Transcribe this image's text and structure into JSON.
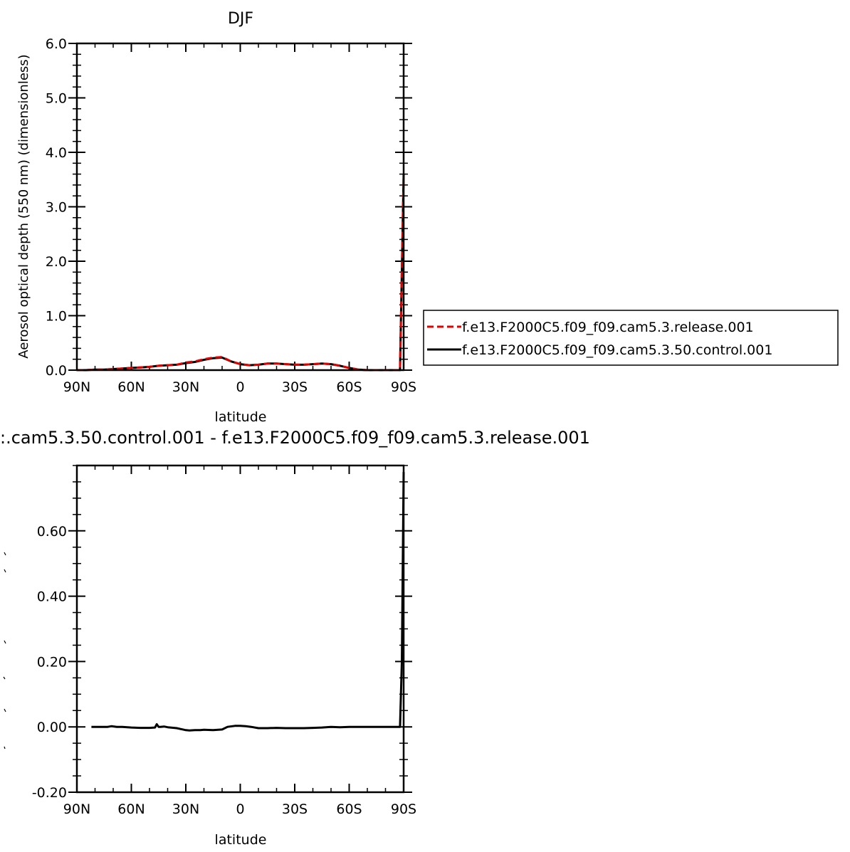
{
  "chart_data": [
    {
      "type": "line",
      "title": "DJF",
      "xlabel": "latitude",
      "ylabel": "Aerosol optical depth (550 nm) (dimensionless)",
      "xlim": [
        90,
        -90
      ],
      "ylim": [
        0.0,
        6.0
      ],
      "x_ticks": [
        {
          "value": 90,
          "label": "90N"
        },
        {
          "value": 60,
          "label": "60N"
        },
        {
          "value": 30,
          "label": "30N"
        },
        {
          "value": 0,
          "label": "0"
        },
        {
          "value": -30,
          "label": "30S"
        },
        {
          "value": -60,
          "label": "60S"
        },
        {
          "value": -90,
          "label": "90S"
        }
      ],
      "y_ticks": [
        {
          "value": 0.0,
          "label": "0.0"
        },
        {
          "value": 1.0,
          "label": "1.0"
        },
        {
          "value": 2.0,
          "label": "2.0"
        },
        {
          "value": 3.0,
          "label": "3.0"
        },
        {
          "value": 4.0,
          "label": "4.0"
        },
        {
          "value": 5.0,
          "label": "5.0"
        },
        {
          "value": 6.0,
          "label": "6.0"
        }
      ],
      "legend_position": "right",
      "series": [
        {
          "name": "f.e13.F2000C5.f09_f09.cam5.3.release.001",
          "color": "#e00000",
          "dash": "dashed",
          "x": [
            90,
            85,
            80,
            75,
            70,
            65,
            60,
            55,
            50,
            45,
            40,
            35,
            30,
            25,
            20,
            15,
            10,
            5,
            0,
            -5,
            -10,
            -15,
            -20,
            -25,
            -30,
            -35,
            -40,
            -45,
            -50,
            -55,
            -60,
            -65,
            -70,
            -75,
            -80,
            -85,
            -88,
            -90
          ],
          "y": [
            0.0,
            0.0,
            0.01,
            0.01,
            0.02,
            0.03,
            0.04,
            0.05,
            0.06,
            0.08,
            0.09,
            0.1,
            0.14,
            0.16,
            0.2,
            0.23,
            0.24,
            0.16,
            0.11,
            0.09,
            0.1,
            0.12,
            0.12,
            0.11,
            0.1,
            0.1,
            0.11,
            0.12,
            0.11,
            0.08,
            0.04,
            0.01,
            0.0,
            0.0,
            0.0,
            0.0,
            0.0,
            3.55
          ]
        },
        {
          "name": "f.e13.F2000C5.f09_f09.cam5.3.50.control.001",
          "color": "#000000",
          "dash": "solid",
          "x": [
            90,
            85,
            80,
            75,
            70,
            65,
            60,
            55,
            50,
            45,
            40,
            35,
            30,
            25,
            20,
            15,
            10,
            5,
            0,
            -5,
            -10,
            -15,
            -20,
            -25,
            -30,
            -35,
            -40,
            -45,
            -50,
            -55,
            -60,
            -65,
            -70,
            -75,
            -80,
            -85,
            -88,
            -90
          ],
          "y": [
            0.0,
            0.0,
            0.01,
            0.01,
            0.02,
            0.03,
            0.04,
            0.05,
            0.06,
            0.08,
            0.09,
            0.1,
            0.13,
            0.15,
            0.19,
            0.22,
            0.23,
            0.16,
            0.11,
            0.09,
            0.1,
            0.12,
            0.12,
            0.11,
            0.1,
            0.1,
            0.11,
            0.12,
            0.11,
            0.08,
            0.04,
            0.01,
            0.0,
            0.0,
            0.0,
            0.0,
            0.0,
            3.6
          ]
        }
      ]
    },
    {
      "type": "line",
      "title": ":.cam5.3.50.control.001  -  f.e13.F2000C5.f09_f09.cam5.3.release.001",
      "xlabel": "latitude",
      "ylabel": "",
      "xlim": [
        90,
        -90
      ],
      "ylim": [
        -0.2,
        0.8
      ],
      "x_ticks": [
        {
          "value": 90,
          "label": "90N"
        },
        {
          "value": 60,
          "label": "60N"
        },
        {
          "value": 30,
          "label": "30N"
        },
        {
          "value": 0,
          "label": "0"
        },
        {
          "value": -30,
          "label": "30S"
        },
        {
          "value": -60,
          "label": "60S"
        },
        {
          "value": -90,
          "label": "90S"
        }
      ],
      "y_ticks": [
        {
          "value": -0.2,
          "label": "-0.20"
        },
        {
          "value": 0.0,
          "label": "0.00"
        },
        {
          "value": 0.2,
          "label": "0.20"
        },
        {
          "value": 0.4,
          "label": "0.40"
        },
        {
          "value": 0.6,
          "label": "0.60"
        }
      ],
      "series": [
        {
          "name": "",
          "color": "#000000",
          "dash": "solid",
          "x": [
            82,
            78,
            75,
            73,
            71,
            68,
            65,
            60,
            55,
            50,
            47,
            46,
            45,
            44,
            42,
            40,
            35,
            30,
            28,
            25,
            22,
            20,
            15,
            10,
            7,
            3,
            0,
            -3,
            -6,
            -10,
            -15,
            -20,
            -25,
            -30,
            -35,
            -40,
            -45,
            -50,
            -55,
            -60,
            -65,
            -70,
            -75,
            -80,
            -85,
            -88,
            -89,
            -90
          ],
          "y": [
            0.0,
            0.0,
            0.0,
            0.0,
            0.002,
            0.0,
            0.0,
            -0.002,
            -0.003,
            -0.003,
            -0.002,
            0.008,
            0.0,
            0.0,
            0.001,
            -0.001,
            -0.004,
            -0.01,
            -0.011,
            -0.01,
            -0.01,
            -0.009,
            -0.01,
            -0.008,
            0.0,
            0.003,
            0.003,
            0.002,
            0.0,
            -0.004,
            -0.004,
            -0.003,
            -0.004,
            -0.004,
            -0.004,
            -0.003,
            -0.002,
            0.0,
            -0.001,
            0.0,
            0.0,
            0.0,
            0.0,
            0.0,
            0.0,
            0.0,
            0.2,
            0.78
          ]
        }
      ]
    }
  ]
}
